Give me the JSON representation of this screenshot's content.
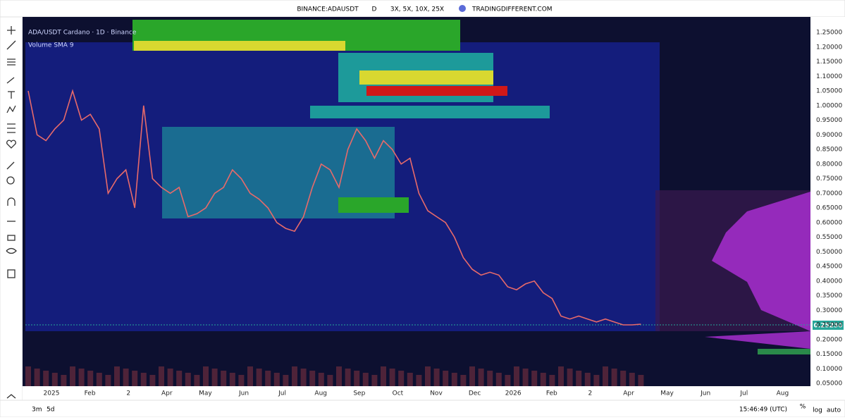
{
  "header": {
    "symbol": "BINANCE:ADAUSDT",
    "interval": "D",
    "leverage": "3X, 5X, 10X, 25X",
    "site": "TRADINGDIFFERENT.COM"
  },
  "legend": {
    "title": "ADA/USDT Cardano · 1D · Binance",
    "volume": "Volume SMA 9"
  },
  "price_axis": {
    "labels": [
      "1.25000",
      "1.20000",
      "1.15000",
      "1.10000",
      "1.05000",
      "1.00000",
      "0.95000",
      "0.90000",
      "0.85000",
      "0.80000",
      "0.75000",
      "0.70000",
      "0.65000",
      "0.60000",
      "0.55000",
      "0.50000",
      "0.45000",
      "0.40000",
      "0.35000",
      "0.30000",
      "0.25000",
      "0.20000",
      "0.15000",
      "0.10000",
      "0.05000"
    ],
    "current": "0.25250"
  },
  "time_axis": {
    "labels": [
      "2025",
      "Feb",
      "2",
      "Apr",
      "May",
      "Jun",
      "Jul",
      "Aug",
      "Sep",
      "Oct",
      "Nov",
      "Dec",
      "2026",
      "Feb",
      "2",
      "Apr",
      "May",
      "Jun",
      "Jul",
      "Aug"
    ]
  },
  "price": {
    "closes": [
      1.05,
      0.9,
      0.88,
      0.92,
      0.95,
      1.05,
      0.95,
      0.97,
      0.92,
      0.7,
      0.75,
      0.78,
      0.65,
      1.0,
      0.75,
      0.72,
      0.7,
      0.72,
      0.62,
      0.63,
      0.65,
      0.7,
      0.72,
      0.78,
      0.75,
      0.7,
      0.68,
      0.65,
      0.6,
      0.58,
      0.57,
      0.62,
      0.72,
      0.8,
      0.78,
      0.72,
      0.85,
      0.92,
      0.88,
      0.82,
      0.88,
      0.85,
      0.8,
      0.82,
      0.7,
      0.64,
      0.62,
      0.6,
      0.55,
      0.48,
      0.44,
      0.42,
      0.43,
      0.42,
      0.38,
      0.37,
      0.39,
      0.4,
      0.36,
      0.34,
      0.28,
      0.27,
      0.28,
      0.27,
      0.26,
      0.27,
      0.26,
      0.25,
      0.25,
      0.2525
    ]
  },
  "footer": {
    "ranges": [
      "3m",
      "5d"
    ],
    "clock": "15:46:49 (UTC)",
    "percent": "%",
    "log": "log",
    "auto": "auto"
  }
}
